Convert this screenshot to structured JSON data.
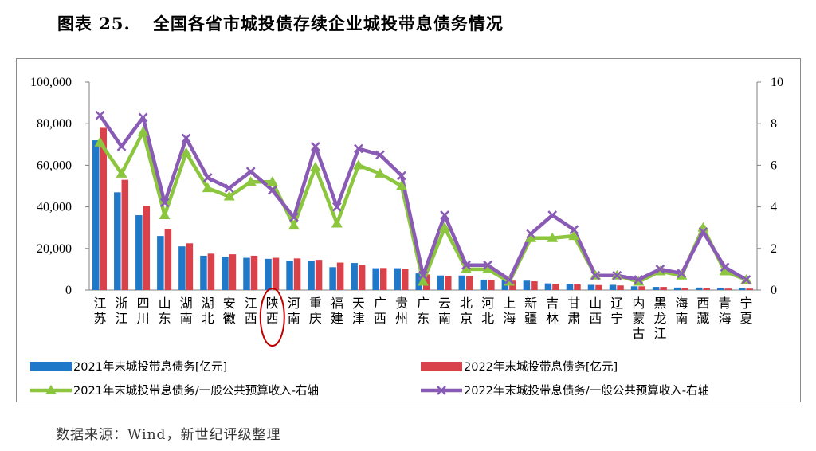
{
  "figure_title": {
    "number": "图表 25.",
    "text": "全国各省市城投债存续企业城投带息债务情况"
  },
  "source_note": "数据来源：Wind，新世纪评级整理",
  "colors": {
    "bar_2021": "#1f78c8",
    "bar_2022": "#d9424a",
    "line_2021": "#8cc63f",
    "line_2022": "#8a5bb5",
    "highlight_circle": "#c00000"
  },
  "chart_data": {
    "type": "bar",
    "categories": [
      "江苏",
      "浙江",
      "四川",
      "山东",
      "湖南",
      "湖北",
      "安徽",
      "江西",
      "陕西",
      "河南",
      "重庆",
      "福建",
      "天津",
      "广西",
      "贵州",
      "广东",
      "云南",
      "北京",
      "河北",
      "上海",
      "新疆",
      "吉林",
      "甘肃",
      "山西",
      "辽宁",
      "内蒙古",
      "黑龙江",
      "海南",
      "西藏",
      "青海",
      "宁夏"
    ],
    "y_left": {
      "ticks": [
        "0",
        "20,000",
        "40,000",
        "60,000",
        "80,000",
        "100,000"
      ],
      "min": 0,
      "max": 100000
    },
    "y_right": {
      "ticks": [
        "0",
        "2",
        "4",
        "6",
        "8",
        "10"
      ],
      "min": 0,
      "max": 10
    },
    "highlighted_category": "陕西",
    "series": [
      {
        "name": "2021年末城投带息债务[亿元]",
        "kind": "bar",
        "axis": "left",
        "values": [
          72000,
          47000,
          36000,
          26000,
          21000,
          16500,
          16000,
          15500,
          15000,
          14000,
          14000,
          11000,
          13000,
          10500,
          10500,
          8000,
          7000,
          7000,
          5000,
          5000,
          4500,
          3200,
          3000,
          2500,
          2500,
          1800,
          1500,
          1200,
          1200,
          900,
          900
        ]
      },
      {
        "name": "2022年末城投带息债务[亿元]",
        "kind": "bar",
        "axis": "left",
        "values": [
          78000,
          53000,
          40500,
          29500,
          22500,
          17500,
          17200,
          16500,
          15500,
          15200,
          14500,
          13200,
          12200,
          10600,
          10200,
          7500,
          6800,
          6800,
          4800,
          4500,
          4200,
          3000,
          2700,
          2400,
          2200,
          1800,
          1500,
          1100,
          1000,
          700,
          700
        ]
      },
      {
        "name": "2021年末城投带息债务/一般公共预算收入-右轴",
        "kind": "line",
        "axis": "right",
        "marker": "triangle",
        "values": [
          7.1,
          5.6,
          7.6,
          3.6,
          6.6,
          4.9,
          4.5,
          5.2,
          5.2,
          3.1,
          5.9,
          3.2,
          6.0,
          5.6,
          5.0,
          0.4,
          3.0,
          1.0,
          1.0,
          0.4,
          2.5,
          2.5,
          2.6,
          0.7,
          0.7,
          0.4,
          0.9,
          0.7,
          3.0,
          0.9,
          0.5
        ]
      },
      {
        "name": "2022年末城投带息债务/一般公共预算收入-右轴",
        "kind": "line",
        "axis": "right",
        "marker": "x",
        "values": [
          8.4,
          6.9,
          8.3,
          4.2,
          7.3,
          5.4,
          4.9,
          5.7,
          4.8,
          3.5,
          6.9,
          4.0,
          6.8,
          6.5,
          5.5,
          0.7,
          3.6,
          1.2,
          1.2,
          0.5,
          2.7,
          3.6,
          2.9,
          0.7,
          0.7,
          0.5,
          1.0,
          0.8,
          2.8,
          1.1,
          0.5
        ]
      }
    ]
  }
}
